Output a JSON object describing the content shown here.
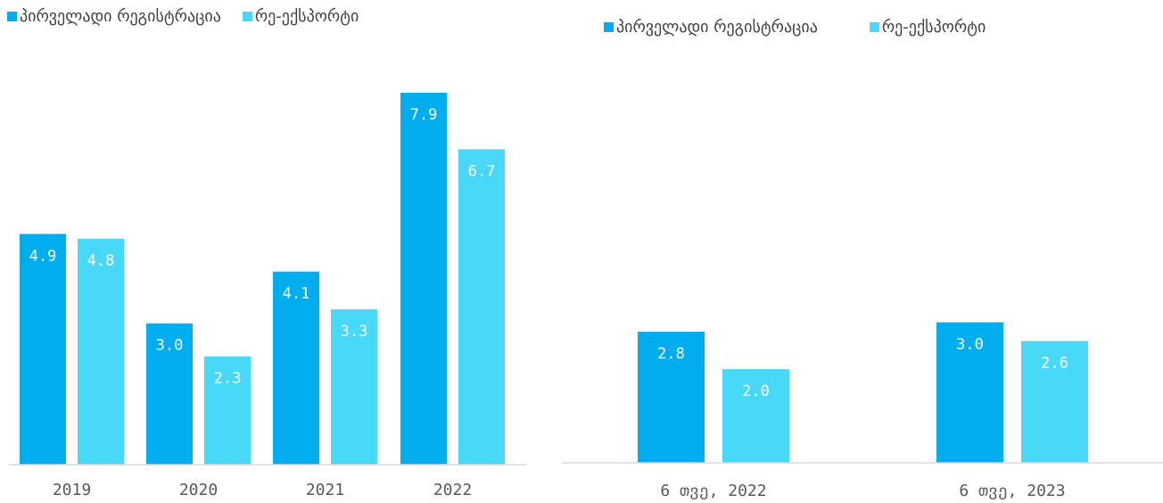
{
  "colors": {
    "primary_registration": "#00AEEF",
    "re_export": "#48D8F8",
    "axis": "#D9D9D9"
  },
  "chart_data": [
    {
      "type": "bar",
      "categories": [
        "2019",
        "2020",
        "2021",
        "2022"
      ],
      "series": [
        {
          "name": "პირველადი რეგისტრაცია",
          "values": [
            4.9,
            3.0,
            4.1,
            7.9
          ],
          "labels": [
            "4.9",
            "3.0",
            "4.1",
            "7.9"
          ]
        },
        {
          "name": "რე-ექსპორტი",
          "values": [
            4.8,
            2.3,
            3.3,
            6.7
          ],
          "labels": [
            "4.8",
            "2.3",
            "3.3",
            "6.7"
          ]
        }
      ],
      "ylim": [
        0,
        7.9
      ],
      "legend": "top-left",
      "grid": false
    },
    {
      "type": "bar",
      "categories": [
        "6 თვე, 2022",
        "6 თვე, 2023"
      ],
      "series": [
        {
          "name": "პირველადი რეგისტრაცია",
          "values": [
            2.8,
            3.0
          ],
          "labels": [
            "2.8",
            "3.0"
          ]
        },
        {
          "name": "რე-ექსპორტი",
          "values": [
            2.0,
            2.6
          ],
          "labels": [
            "2.0",
            "2.6"
          ]
        }
      ],
      "ylim": [
        0,
        7.9
      ],
      "legend": "top-left",
      "grid": false
    }
  ]
}
